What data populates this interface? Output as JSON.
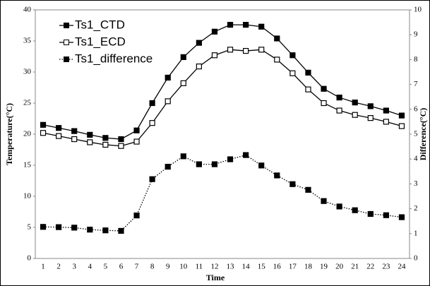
{
  "chart_data": {
    "type": "line",
    "x_label": "Time",
    "y_label": "Temperature(°C)",
    "y2_label": "Difference(°C)",
    "categories": [
      "1",
      "2",
      "3",
      "4",
      "5",
      "6",
      "7",
      "8",
      "9",
      "10",
      "11",
      "12",
      "13",
      "14",
      "15",
      "16",
      "17",
      "18",
      "19",
      "20",
      "21",
      "22",
      "23",
      "24"
    ],
    "ylim": [
      0,
      40
    ],
    "yticks": [
      0,
      5,
      10,
      15,
      20,
      25,
      30,
      35,
      40
    ],
    "y2lim": [
      0,
      10
    ],
    "y2ticks": [
      0,
      1,
      2,
      3,
      4,
      5,
      6,
      7,
      8,
      9,
      10
    ],
    "grid": false,
    "legend": "upper left",
    "series": [
      {
        "name": "Ts1_CTD",
        "color": "#000000",
        "marker_fill": true,
        "line_style": "solid",
        "values": [
          21.5,
          21.0,
          20.5,
          19.9,
          19.4,
          19.2,
          20.6,
          25.0,
          29.1,
          32.4,
          34.7,
          36.5,
          37.6,
          37.6,
          37.3,
          35.4,
          32.7,
          29.9,
          27.3,
          25.9,
          25.1,
          24.5,
          23.8,
          23.0
        ]
      },
      {
        "name": "Ts1_ECD",
        "color": "#000000",
        "marker_fill": false,
        "line_style": "solid",
        "values": [
          20.2,
          19.7,
          19.2,
          18.7,
          18.3,
          18.1,
          18.8,
          21.8,
          25.3,
          28.2,
          30.9,
          32.7,
          33.6,
          33.4,
          33.6,
          32.0,
          29.8,
          27.2,
          25.0,
          23.8,
          23.1,
          22.6,
          22.0,
          21.3
        ]
      },
      {
        "name": "Ts1_difference",
        "color": "#000000",
        "marker_fill": true,
        "line_style": "dotted",
        "axis": "y2",
        "values": [
          1.27,
          1.26,
          1.24,
          1.16,
          1.13,
          1.11,
          1.73,
          3.19,
          3.69,
          4.11,
          3.79,
          3.79,
          3.99,
          4.16,
          3.74,
          3.34,
          2.99,
          2.76,
          2.31,
          2.09,
          1.94,
          1.79,
          1.74,
          1.66
        ]
      }
    ]
  }
}
